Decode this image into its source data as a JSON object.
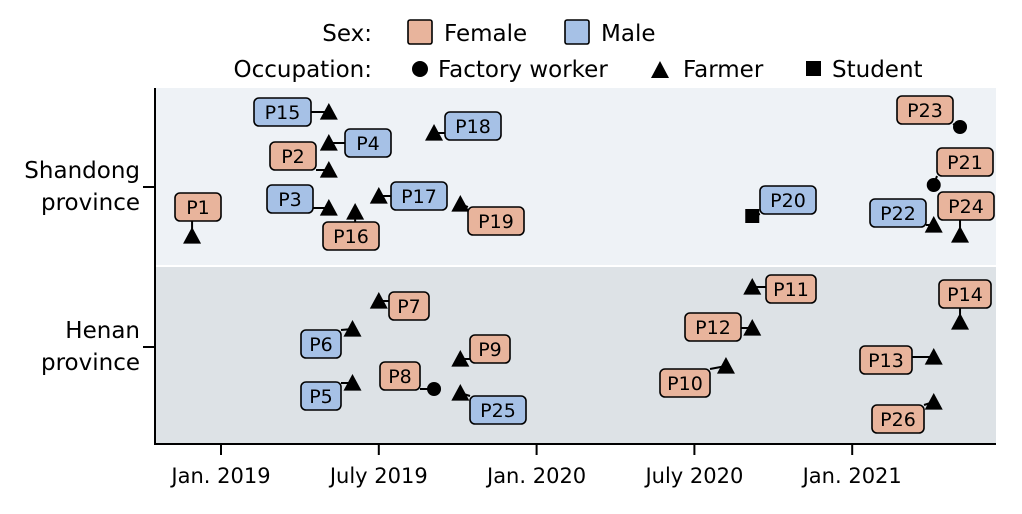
{
  "chart_data": {
    "type": "scatter",
    "title": "",
    "xlabel": "",
    "ylabel": "",
    "categories": [
      "Shandong province",
      "Henan province"
    ],
    "x_ticks": [
      {
        "label": "Jan. 2019",
        "value": 0
      },
      {
        "label": "July 2019",
        "value": 6
      },
      {
        "label": "Jan. 2020",
        "value": 12
      },
      {
        "label": "July 2020",
        "value": 18
      },
      {
        "label": "Jan. 2021",
        "value": 24
      }
    ],
    "xlim": [
      -2.5,
      29.5
    ],
    "x_unit": "months since Jan. 2019",
    "legend": {
      "sex_title": "Sex:",
      "sex": [
        {
          "label": "Female",
          "color": "#e8b49c"
        },
        {
          "label": "Male",
          "color": "#a6c1e6"
        }
      ],
      "occupation_title": "Occupation:",
      "occupation": [
        {
          "label": "Factory worker",
          "shape": "circle"
        },
        {
          "label": "Farmer",
          "shape": "triangle"
        },
        {
          "label": "Student",
          "shape": "square"
        }
      ]
    },
    "colors": {
      "female": "#e8b49c",
      "male": "#a6c1e6",
      "shandong_band": "#eef2f6",
      "henan_band": "#dde2e6",
      "marker": "#000000"
    },
    "points": [
      {
        "id": "P1",
        "province": "Shandong province",
        "month": -1.1,
        "sex": "Female",
        "occupation": "Farmer"
      },
      {
        "id": "P2",
        "province": "Shandong province",
        "month": 4.1,
        "sex": "Female",
        "occupation": "Farmer"
      },
      {
        "id": "P3",
        "province": "Shandong province",
        "month": 4.1,
        "sex": "Male",
        "occupation": "Farmer"
      },
      {
        "id": "P4",
        "province": "Shandong province",
        "month": 4.1,
        "sex": "Male",
        "occupation": "Farmer"
      },
      {
        "id": "P15",
        "province": "Shandong province",
        "month": 4.1,
        "sex": "Male",
        "occupation": "Farmer"
      },
      {
        "id": "P16",
        "province": "Shandong province",
        "month": 5.1,
        "sex": "Female",
        "occupation": "Farmer"
      },
      {
        "id": "P17",
        "province": "Shandong province",
        "month": 6.0,
        "sex": "Male",
        "occupation": "Farmer"
      },
      {
        "id": "P18",
        "province": "Shandong province",
        "month": 8.1,
        "sex": "Male",
        "occupation": "Farmer"
      },
      {
        "id": "P19",
        "province": "Shandong province",
        "month": 9.1,
        "sex": "Female",
        "occupation": "Farmer"
      },
      {
        "id": "P20",
        "province": "Shandong province",
        "month": 20.2,
        "sex": "Male",
        "occupation": "Student"
      },
      {
        "id": "P21",
        "province": "Shandong province",
        "month": 27.1,
        "sex": "Female",
        "occupation": "Factory worker"
      },
      {
        "id": "P22",
        "province": "Shandong province",
        "month": 27.1,
        "sex": "Male",
        "occupation": "Farmer"
      },
      {
        "id": "P23",
        "province": "Shandong province",
        "month": 28.1,
        "sex": "Female",
        "occupation": "Factory worker"
      },
      {
        "id": "P24",
        "province": "Shandong province",
        "month": 28.1,
        "sex": "Female",
        "occupation": "Farmer"
      },
      {
        "id": "P5",
        "province": "Henan province",
        "month": 5.0,
        "sex": "Male",
        "occupation": "Farmer"
      },
      {
        "id": "P6",
        "province": "Henan province",
        "month": 5.0,
        "sex": "Male",
        "occupation": "Farmer"
      },
      {
        "id": "P7",
        "province": "Henan province",
        "month": 6.0,
        "sex": "Female",
        "occupation": "Farmer"
      },
      {
        "id": "P8",
        "province": "Henan province",
        "month": 8.1,
        "sex": "Female",
        "occupation": "Factory worker"
      },
      {
        "id": "P9",
        "province": "Henan province",
        "month": 9.1,
        "sex": "Female",
        "occupation": "Farmer"
      },
      {
        "id": "P25",
        "province": "Henan province",
        "month": 9.1,
        "sex": "Male",
        "occupation": "Farmer"
      },
      {
        "id": "P10",
        "province": "Henan province",
        "month": 19.2,
        "sex": "Female",
        "occupation": "Farmer"
      },
      {
        "id": "P11",
        "province": "Henan province",
        "month": 20.2,
        "sex": "Female",
        "occupation": "Farmer"
      },
      {
        "id": "P12",
        "province": "Henan province",
        "month": 20.2,
        "sex": "Female",
        "occupation": "Farmer"
      },
      {
        "id": "P13",
        "province": "Henan province",
        "month": 27.1,
        "sex": "Female",
        "occupation": "Farmer"
      },
      {
        "id": "P26",
        "province": "Henan province",
        "month": 27.1,
        "sex": "Female",
        "occupation": "Farmer"
      },
      {
        "id": "P14",
        "province": "Henan province",
        "month": 28.1,
        "sex": "Female",
        "occupation": "Farmer"
      }
    ]
  }
}
